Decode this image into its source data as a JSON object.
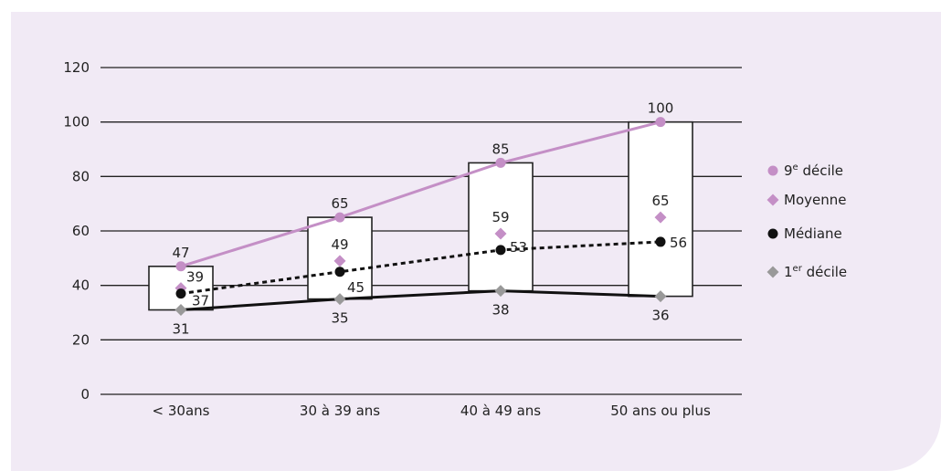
{
  "chart_data": {
    "type": "line",
    "categories": [
      "< 30ans",
      "30 à 39 ans",
      "40 à 49 ans",
      "50 ans ou plus"
    ],
    "yticks": [
      0,
      20,
      40,
      60,
      80,
      100,
      120
    ],
    "ylim": [
      0,
      120
    ],
    "grid": true,
    "legend_position": "right",
    "series": [
      {
        "key": "d9",
        "name": "9e décile",
        "name_base": "9",
        "name_sup": "e",
        "name_rest": " décile",
        "color": "#c48fc6",
        "marker": "circle",
        "line": "solid",
        "values": [
          47,
          65,
          85,
          100
        ]
      },
      {
        "key": "moy",
        "name": "Moyenne",
        "color": "#c48fc6",
        "marker": "diamond",
        "line": "none",
        "values": [
          39,
          49,
          59,
          65
        ]
      },
      {
        "key": "med",
        "name": "Médiane",
        "color": "#111111",
        "marker": "circle",
        "line": "dotted",
        "values": [
          37,
          45,
          53,
          56
        ]
      },
      {
        "key": "d1",
        "name": "1er décile",
        "name_base": "1",
        "name_sup": "er",
        "name_rest": " décile",
        "color": "#999999",
        "marker": "diamond",
        "line": "solid-black",
        "values": [
          31,
          35,
          38,
          36
        ]
      }
    ]
  }
}
